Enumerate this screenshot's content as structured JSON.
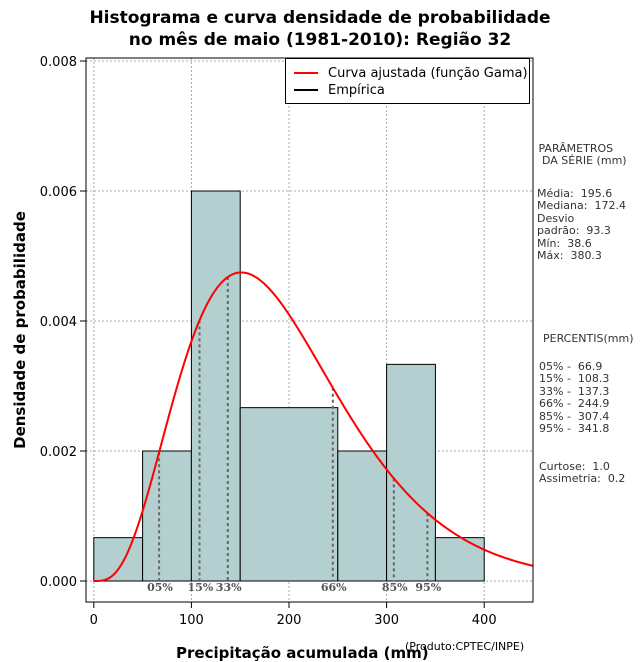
{
  "chart_data": {
    "type": "bar",
    "title_line1": "Histograma e curva densidade de probabilidade",
    "title_line2": "no mês de maio (1981-2010): Região 32",
    "xlabel": "Precipitação acumulada (mm)",
    "ylabel": "Densidade de probabilidade",
    "credit": "(Produto:CPTEC/INPE)",
    "xlim": [
      -8,
      450
    ],
    "ylim": [
      0,
      0.008
    ],
    "x_ticks": [
      0,
      100,
      200,
      300,
      400
    ],
    "y_ticks": [
      "0.000",
      "0.002",
      "0.004",
      "0.006",
      "0.008"
    ],
    "histogram": [
      {
        "x0": 0,
        "x1": 50,
        "density": 0.000667
      },
      {
        "x0": 50,
        "x1": 100,
        "density": 0.002
      },
      {
        "x0": 100,
        "x1": 150,
        "density": 0.006
      },
      {
        "x0": 150,
        "x1": 250,
        "density": 0.002667
      },
      {
        "x0": 250,
        "x1": 300,
        "density": 0.002
      },
      {
        "x0": 300,
        "x1": 350,
        "density": 0.003333
      },
      {
        "x0": 350,
        "x1": 400,
        "density": 0.000667
      }
    ],
    "gamma_fit": {
      "mean": 195.6,
      "sd": 93.3
    },
    "legend": {
      "fitted": "Curva ajustada (função Gama)",
      "empirical": "Empírica"
    },
    "percentile_lines": [
      {
        "label": "05%",
        "x": 66.9
      },
      {
        "label": "15%",
        "x": 108.3
      },
      {
        "label": "33%",
        "x": 137.3
      },
      {
        "label": "66%",
        "x": 244.9
      },
      {
        "label": "85%",
        "x": 307.4
      },
      {
        "label": "95%",
        "x": 341.8
      }
    ],
    "colors": {
      "bar": "#b3cfcf",
      "curve": "#ff0000",
      "grid": "#aaaaaa",
      "percentile": "#666666"
    }
  },
  "side_panel": {
    "params_title": " PARÂMETROS\n  DA SÉRIE (mm)",
    "params_body": "Média:  195.6\nMediana:  172.4\nDesvio\npadrão:  93.3\nMín:  38.6\nMáx:  380.3",
    "percentis_title": "PERCENTIS(mm)",
    "percentis_body": "05% -  66.9\n15% -  108.3\n33% -  137.3\n66% -  244.9\n85% -  307.4\n95% -  341.8",
    "stats_body": "Curtose:  1.0\nAssimetria:  0.2"
  }
}
